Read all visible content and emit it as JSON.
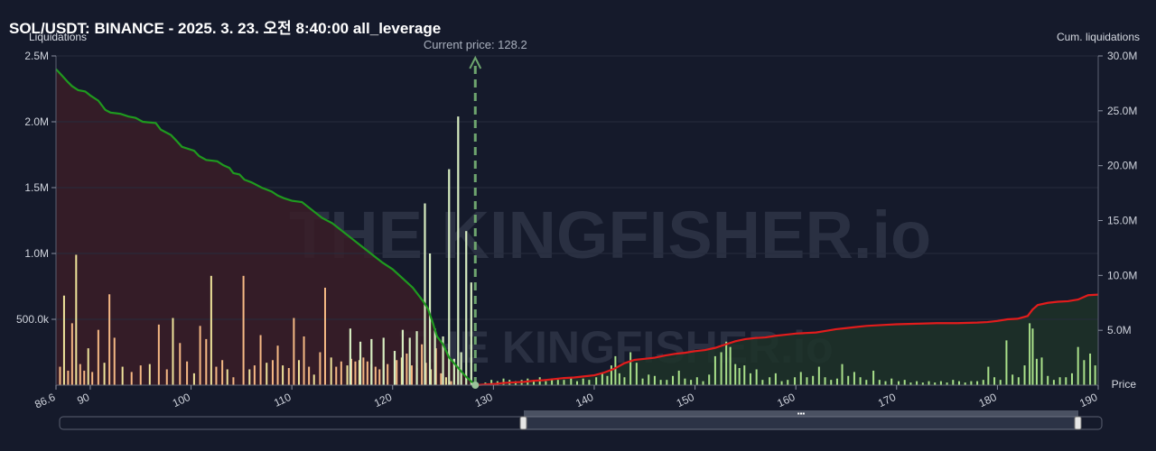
{
  "chart_data": {
    "type": "bar",
    "title": "SOL/USDT: BINANCE - 2025. 3. 23. 오전 8:40:00 all_leverage",
    "ylabel_left": "Liquidations",
    "ylabel_right": "Cum. liquidations",
    "xlabel": "Price",
    "watermark": "THE KINGFISHER.io",
    "current_price": 128.2,
    "current_price_label": "Current price: 128.2",
    "xlim": [
      86.6,
      190
    ],
    "x_ticks": [
      "86.6",
      "90",
      "100",
      "110",
      "120",
      "130",
      "140",
      "150",
      "160",
      "170",
      "180",
      "190"
    ],
    "x_tick_values": [
      86.6,
      90,
      100,
      110,
      120,
      130,
      140,
      150,
      160,
      170,
      180,
      190
    ],
    "y_left_lim": [
      0,
      2500000
    ],
    "y_left_ticks": [
      "2.5M",
      "2.0M",
      "1.5M",
      "1.0M",
      "500.0k"
    ],
    "y_left_tick_values": [
      2500000,
      2000000,
      1500000,
      1000000,
      500000
    ],
    "y_right_lim": [
      0,
      30000000
    ],
    "y_right_ticks": [
      "30.0M",
      "25.0M",
      "20.0M",
      "15.0M",
      "10.0M",
      "5.0M"
    ],
    "y_right_tick_values": [
      30000000,
      25000000,
      20000000,
      15000000,
      10000000,
      5000000
    ],
    "colors": {
      "long_bar": "#f5b884",
      "long_bar_alt": "#efe39a",
      "short_bar": "#a9e08a",
      "long_cum_line": "#1f9a1f",
      "short_cum_line": "#e21c1c",
      "current_price_line": "#6ea56e"
    },
    "long_liquidations": [
      [
        87.0,
        140000
      ],
      [
        87.4,
        680000
      ],
      [
        87.8,
        110000
      ],
      [
        88.2,
        470000
      ],
      [
        88.6,
        990000
      ],
      [
        89.0,
        160000
      ],
      [
        89.4,
        110000
      ],
      [
        89.8,
        280000
      ],
      [
        90.2,
        100000
      ],
      [
        90.8,
        420000
      ],
      [
        91.4,
        170000
      ],
      [
        91.9,
        690000
      ],
      [
        92.4,
        360000
      ],
      [
        93.2,
        140000
      ],
      [
        94.1,
        100000
      ],
      [
        95.0,
        150000
      ],
      [
        95.9,
        160000
      ],
      [
        96.8,
        460000
      ],
      [
        97.6,
        120000
      ],
      [
        98.2,
        510000
      ],
      [
        98.9,
        320000
      ],
      [
        99.6,
        180000
      ],
      [
        100.3,
        90000
      ],
      [
        100.9,
        450000
      ],
      [
        101.5,
        350000
      ],
      [
        102.0,
        830000
      ],
      [
        102.5,
        140000
      ],
      [
        103.1,
        190000
      ],
      [
        103.6,
        120000
      ],
      [
        104.2,
        60000
      ],
      [
        105.2,
        830000
      ],
      [
        105.8,
        120000
      ],
      [
        106.3,
        150000
      ],
      [
        106.9,
        380000
      ],
      [
        107.5,
        170000
      ],
      [
        108.1,
        190000
      ],
      [
        108.6,
        300000
      ],
      [
        109.1,
        150000
      ],
      [
        109.7,
        130000
      ],
      [
        110.2,
        510000
      ],
      [
        110.7,
        190000
      ],
      [
        111.2,
        370000
      ],
      [
        111.7,
        140000
      ],
      [
        112.2,
        80000
      ],
      [
        112.8,
        250000
      ],
      [
        113.3,
        740000
      ],
      [
        113.9,
        210000
      ],
      [
        114.4,
        140000
      ],
      [
        114.9,
        180000
      ],
      [
        115.5,
        150000
      ],
      [
        115.9,
        200000
      ],
      [
        116.3,
        180000
      ],
      [
        116.7,
        190000
      ],
      [
        117.1,
        210000
      ],
      [
        117.5,
        180000
      ],
      [
        117.9,
        160000
      ],
      [
        118.3,
        140000
      ],
      [
        118.7,
        120000
      ],
      [
        119.1,
        190000
      ],
      [
        119.5,
        160000
      ],
      [
        120.4,
        190000
      ],
      [
        120.9,
        210000
      ],
      [
        121.4,
        240000
      ],
      [
        121.9,
        150000
      ],
      [
        122.4,
        130000
      ],
      [
        122.9,
        310000
      ],
      [
        123.3,
        170000
      ],
      [
        123.8,
        120000
      ],
      [
        124.3,
        280000
      ],
      [
        124.8,
        90000
      ],
      [
        125.3,
        60000
      ],
      [
        125.8,
        30000
      ]
    ],
    "long_liquidations_pale": [
      [
        115.8,
        430000
      ],
      [
        116.8,
        330000
      ],
      [
        117.9,
        350000
      ],
      [
        119.1,
        360000
      ],
      [
        120.2,
        260000
      ],
      [
        121.0,
        420000
      ],
      [
        121.7,
        360000
      ],
      [
        122.4,
        410000
      ],
      [
        123.2,
        1380000
      ],
      [
        123.7,
        1000000
      ],
      [
        124.2,
        430000
      ],
      [
        125.0,
        370000
      ],
      [
        125.6,
        1640000
      ],
      [
        126.1,
        200000
      ],
      [
        126.5,
        2040000
      ],
      [
        126.8,
        250000
      ],
      [
        127.3,
        1170000
      ],
      [
        127.8,
        780000
      ]
    ],
    "short_liquidations": [
      [
        129.2,
        20000
      ],
      [
        129.8,
        40000
      ],
      [
        130.4,
        30000
      ],
      [
        131.0,
        50000
      ],
      [
        131.6,
        40000
      ],
      [
        132.2,
        30000
      ],
      [
        132.8,
        40000
      ],
      [
        133.4,
        50000
      ],
      [
        134.0,
        40000
      ],
      [
        134.6,
        60000
      ],
      [
        135.2,
        30000
      ],
      [
        135.8,
        50000
      ],
      [
        136.4,
        40000
      ],
      [
        137.0,
        40000
      ],
      [
        137.7,
        60000
      ],
      [
        138.3,
        30000
      ],
      [
        138.9,
        50000
      ],
      [
        139.5,
        40000
      ],
      [
        140.2,
        60000
      ],
      [
        140.8,
        90000
      ],
      [
        141.3,
        70000
      ],
      [
        141.7,
        150000
      ],
      [
        142.1,
        220000
      ],
      [
        142.5,
        90000
      ],
      [
        143.0,
        60000
      ],
      [
        143.6,
        250000
      ],
      [
        144.2,
        170000
      ],
      [
        144.8,
        50000
      ],
      [
        145.4,
        80000
      ],
      [
        146.0,
        70000
      ],
      [
        146.6,
        40000
      ],
      [
        147.2,
        40000
      ],
      [
        147.8,
        70000
      ],
      [
        148.4,
        110000
      ],
      [
        149.0,
        50000
      ],
      [
        149.6,
        40000
      ],
      [
        150.2,
        60000
      ],
      [
        150.8,
        30000
      ],
      [
        151.4,
        80000
      ],
      [
        152.0,
        220000
      ],
      [
        152.6,
        250000
      ],
      [
        153.1,
        330000
      ],
      [
        153.5,
        290000
      ],
      [
        154.0,
        160000
      ],
      [
        154.4,
        130000
      ],
      [
        154.9,
        150000
      ],
      [
        155.5,
        90000
      ],
      [
        156.1,
        120000
      ],
      [
        156.7,
        40000
      ],
      [
        157.4,
        60000
      ],
      [
        158.0,
        90000
      ],
      [
        158.6,
        30000
      ],
      [
        159.2,
        40000
      ],
      [
        159.9,
        60000
      ],
      [
        160.5,
        100000
      ],
      [
        161.1,
        60000
      ],
      [
        161.7,
        70000
      ],
      [
        162.3,
        140000
      ],
      [
        162.9,
        60000
      ],
      [
        163.5,
        40000
      ],
      [
        164.1,
        50000
      ],
      [
        164.6,
        160000
      ],
      [
        165.2,
        70000
      ],
      [
        165.8,
        100000
      ],
      [
        166.4,
        60000
      ],
      [
        167.0,
        40000
      ],
      [
        167.7,
        110000
      ],
      [
        168.3,
        40000
      ],
      [
        168.9,
        30000
      ],
      [
        169.5,
        50000
      ],
      [
        170.2,
        30000
      ],
      [
        170.8,
        40000
      ],
      [
        171.4,
        20000
      ],
      [
        172.0,
        30000
      ],
      [
        172.6,
        20000
      ],
      [
        173.2,
        30000
      ],
      [
        173.8,
        20000
      ],
      [
        174.4,
        30000
      ],
      [
        175.0,
        20000
      ],
      [
        175.6,
        40000
      ],
      [
        176.2,
        30000
      ],
      [
        176.8,
        20000
      ],
      [
        177.4,
        30000
      ],
      [
        178.0,
        30000
      ],
      [
        178.6,
        40000
      ],
      [
        179.1,
        140000
      ],
      [
        179.7,
        60000
      ],
      [
        180.3,
        40000
      ],
      [
        180.9,
        340000
      ],
      [
        181.5,
        80000
      ],
      [
        182.1,
        60000
      ],
      [
        182.7,
        150000
      ],
      [
        183.2,
        470000
      ],
      [
        183.5,
        430000
      ],
      [
        183.9,
        200000
      ],
      [
        184.4,
        210000
      ],
      [
        185.0,
        70000
      ],
      [
        185.6,
        40000
      ],
      [
        186.2,
        60000
      ],
      [
        186.8,
        60000
      ],
      [
        187.4,
        90000
      ],
      [
        188.0,
        290000
      ],
      [
        188.6,
        190000
      ],
      [
        189.2,
        240000
      ],
      [
        189.7,
        150000
      ]
    ],
    "long_cumulative": [
      [
        86.6,
        2400000
      ],
      [
        87.2,
        2350000
      ],
      [
        87.8,
        2300000
      ],
      [
        88.2,
        2270000
      ],
      [
        88.8,
        2240000
      ],
      [
        89.5,
        2230000
      ],
      [
        90.0,
        2200000
      ],
      [
        90.8,
        2160000
      ],
      [
        91.5,
        2090000
      ],
      [
        92.0,
        2070000
      ],
      [
        93.0,
        2060000
      ],
      [
        93.8,
        2040000
      ],
      [
        94.5,
        2030000
      ],
      [
        95.2,
        2000000
      ],
      [
        96.5,
        1990000
      ],
      [
        97.0,
        1940000
      ],
      [
        98.0,
        1900000
      ],
      [
        98.5,
        1860000
      ],
      [
        99.1,
        1810000
      ],
      [
        100.3,
        1780000
      ],
      [
        100.8,
        1740000
      ],
      [
        101.5,
        1710000
      ],
      [
        102.6,
        1700000
      ],
      [
        103.2,
        1670000
      ],
      [
        103.8,
        1650000
      ],
      [
        104.2,
        1610000
      ],
      [
        104.8,
        1600000
      ],
      [
        105.3,
        1560000
      ],
      [
        106.0,
        1540000
      ],
      [
        107.0,
        1500000
      ],
      [
        108.0,
        1470000
      ],
      [
        108.6,
        1440000
      ],
      [
        109.2,
        1420000
      ],
      [
        110.0,
        1400000
      ],
      [
        111.0,
        1390000
      ],
      [
        112.0,
        1330000
      ],
      [
        113.0,
        1270000
      ],
      [
        114.0,
        1230000
      ],
      [
        115.0,
        1170000
      ],
      [
        116.0,
        1110000
      ],
      [
        117.0,
        1050000
      ],
      [
        118.0,
        990000
      ],
      [
        119.0,
        930000
      ],
      [
        120.0,
        880000
      ],
      [
        121.0,
        810000
      ],
      [
        122.0,
        740000
      ],
      [
        123.0,
        640000
      ],
      [
        123.5,
        580000
      ],
      [
        124.0,
        470000
      ],
      [
        124.4,
        370000
      ],
      [
        125.0,
        310000
      ],
      [
        125.6,
        210000
      ],
      [
        126.4,
        140000
      ],
      [
        127.2,
        70000
      ],
      [
        128.2,
        0
      ]
    ],
    "short_cumulative": [
      [
        128.2,
        0
      ],
      [
        129.0,
        50000
      ],
      [
        130.0,
        100000
      ],
      [
        131.0,
        200000
      ],
      [
        132.0,
        250000
      ],
      [
        133.0,
        300000
      ],
      [
        134.0,
        400000
      ],
      [
        135.0,
        450000
      ],
      [
        136.0,
        550000
      ],
      [
        137.0,
        650000
      ],
      [
        138.0,
        700000
      ],
      [
        139.0,
        800000
      ],
      [
        140.0,
        900000
      ],
      [
        141.0,
        1150000
      ],
      [
        142.0,
        1500000
      ],
      [
        143.0,
        2000000
      ],
      [
        144.0,
        2300000
      ],
      [
        145.0,
        2400000
      ],
      [
        146.0,
        2500000
      ],
      [
        147.0,
        2700000
      ],
      [
        148.0,
        2850000
      ],
      [
        149.0,
        2950000
      ],
      [
        150.0,
        3100000
      ],
      [
        151.0,
        3200000
      ],
      [
        152.0,
        3400000
      ],
      [
        153.0,
        3700000
      ],
      [
        154.0,
        4000000
      ],
      [
        155.0,
        4200000
      ],
      [
        156.0,
        4300000
      ],
      [
        157.0,
        4350000
      ],
      [
        158.0,
        4500000
      ],
      [
        159.0,
        4600000
      ],
      [
        160.0,
        4700000
      ],
      [
        161.0,
        4750000
      ],
      [
        162.0,
        4800000
      ],
      [
        163.0,
        4950000
      ],
      [
        164.0,
        5100000
      ],
      [
        165.0,
        5200000
      ],
      [
        166.0,
        5300000
      ],
      [
        167.0,
        5400000
      ],
      [
        168.0,
        5450000
      ],
      [
        169.0,
        5500000
      ],
      [
        170.0,
        5550000
      ],
      [
        172.0,
        5600000
      ],
      [
        174.0,
        5650000
      ],
      [
        176.0,
        5650000
      ],
      [
        178.0,
        5700000
      ],
      [
        179.0,
        5750000
      ],
      [
        180.0,
        5850000
      ],
      [
        181.0,
        6000000
      ],
      [
        182.0,
        6050000
      ],
      [
        183.0,
        6300000
      ],
      [
        183.5,
        6900000
      ],
      [
        184.0,
        7300000
      ],
      [
        185.0,
        7500000
      ],
      [
        186.0,
        7600000
      ],
      [
        187.0,
        7650000
      ],
      [
        188.0,
        7800000
      ],
      [
        189.0,
        8200000
      ],
      [
        190.0,
        8250000
      ]
    ]
  }
}
